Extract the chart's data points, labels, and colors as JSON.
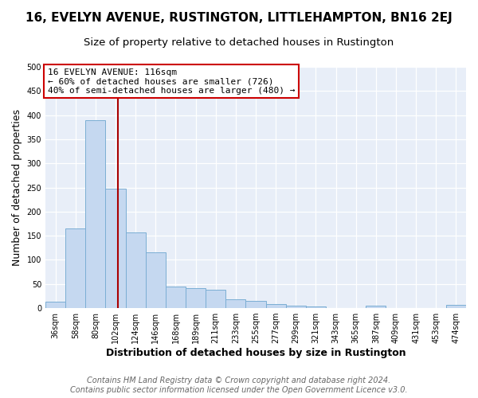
{
  "title": "16, EVELYN AVENUE, RUSTINGTON, LITTLEHAMPTON, BN16 2EJ",
  "subtitle": "Size of property relative to detached houses in Rustington",
  "xlabel": "Distribution of detached houses by size in Rustington",
  "ylabel": "Number of detached properties",
  "bin_labels": [
    "36sqm",
    "58sqm",
    "80sqm",
    "102sqm",
    "124sqm",
    "146sqm",
    "168sqm",
    "189sqm",
    "211sqm",
    "233sqm",
    "255sqm",
    "277sqm",
    "299sqm",
    "321sqm",
    "343sqm",
    "365sqm",
    "387sqm",
    "409sqm",
    "431sqm",
    "453sqm",
    "474sqm"
  ],
  "bar_heights": [
    13,
    165,
    390,
    248,
    157,
    115,
    44,
    42,
    38,
    18,
    15,
    9,
    5,
    4,
    0,
    0,
    5,
    0,
    0,
    0,
    7
  ],
  "bin_width": 22,
  "bar_color": "#c5d8f0",
  "bar_edge_color": "#7baed4",
  "property_size_sqm": 116,
  "property_size_bin_idx": 3,
  "vline_color": "#aa0000",
  "annotation_text": "16 EVELYN AVENUE: 116sqm\n← 60% of detached houses are smaller (726)\n40% of semi-detached houses are larger (480) →",
  "annotation_box_color": "#ffffff",
  "annotation_box_edge": "#cc0000",
  "background_color": "#e8eef8",
  "grid_color": "#ffffff",
  "footer_text": "Contains HM Land Registry data © Crown copyright and database right 2024.\nContains public sector information licensed under the Open Government Licence v3.0.",
  "ylim": [
    0,
    500
  ],
  "yticks": [
    0,
    50,
    100,
    150,
    200,
    250,
    300,
    350,
    400,
    450,
    500
  ],
  "title_fontsize": 11,
  "subtitle_fontsize": 9.5,
  "xlabel_fontsize": 9,
  "ylabel_fontsize": 9,
  "tick_fontsize": 7,
  "footer_fontsize": 7,
  "annotation_fontsize": 8
}
